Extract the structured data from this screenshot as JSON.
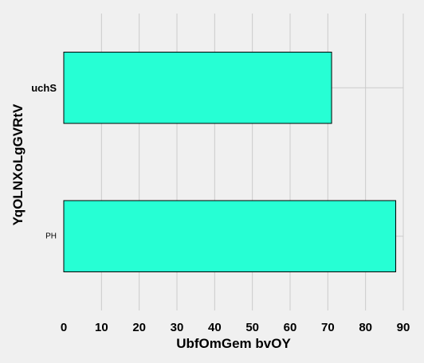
{
  "chart_data": {
    "type": "bar",
    "orientation": "horizontal",
    "categories": [
      "PH",
      "uchS"
    ],
    "category_label_styles": [
      "small",
      "bold"
    ],
    "values": [
      88,
      71
    ],
    "xlabel": "UbfOmGem bvOY",
    "ylabel": "YqOLNXoLgGVRtV",
    "xlim": [
      0,
      90
    ],
    "xticks": [
      0,
      10,
      20,
      30,
      40,
      50,
      60,
      70,
      80,
      90
    ],
    "xtick_labels": [
      "0",
      "10",
      "20",
      "30",
      "40",
      "50",
      "60",
      "70",
      "80",
      "90"
    ],
    "grid": true,
    "bar_color": "#26ffd4",
    "bar_edge_color": "#000000",
    "background_color": "#f0f0f0",
    "grid_color": "#cbcbcb"
  }
}
